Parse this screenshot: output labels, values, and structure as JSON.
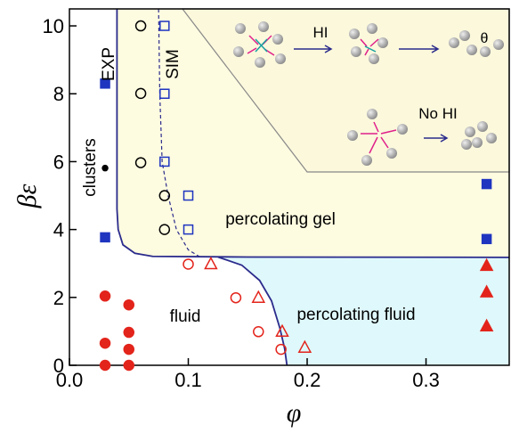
{
  "chart_data": {
    "type": "scatter",
    "xlabel": "φ",
    "ylabel": "βε",
    "xlim": [
      0,
      0.37
    ],
    "ylim": [
      0,
      10.5
    ],
    "xticks": [
      {
        "value": 0,
        "label": "0.0"
      },
      0.1,
      0.2,
      0.3
    ],
    "yticks": [
      0,
      2,
      4,
      6,
      8,
      10
    ],
    "series": [
      {
        "marker": "circle",
        "filled": true,
        "color": "#e3241b",
        "x": [
          0.03,
          0.03,
          0.03,
          0.05,
          0.05,
          0.05,
          0.05
        ],
        "y": [
          2.04,
          0.65,
          0,
          1.78,
          0.97,
          0.47,
          0
        ]
      },
      {
        "marker": "circle",
        "filled": false,
        "color": "#e3241b",
        "x": [
          0.1,
          0.14,
          0.159,
          0.178
        ],
        "y": [
          2.98,
          1.99,
          0.99,
          0.47
        ]
      },
      {
        "marker": "triangle",
        "filled": false,
        "color": "#e3241b",
        "x": [
          0.119,
          0.159,
          0.179,
          0.198
        ],
        "y": [
          2.98,
          1.99,
          0.99,
          0.52
        ]
      },
      {
        "marker": "triangle",
        "filled": true,
        "color": "#e3241b",
        "x": [
          0.351,
          0.351,
          0.351
        ],
        "y": [
          2.93,
          2.15,
          1.15
        ]
      },
      {
        "marker": "circle",
        "filled": false,
        "color": "#000000",
        "x": [
          0.06,
          0.06,
          0.06,
          0.08,
          0.08
        ],
        "y": [
          10,
          8.01,
          5.97,
          5,
          4
        ]
      },
      {
        "marker": "square",
        "filled": false,
        "color": "#1f35c0",
        "x": [
          0.08,
          0.08,
          0.08,
          0.1,
          0.1
        ],
        "y": [
          10,
          8,
          6,
          5,
          4
        ]
      },
      {
        "marker": "square",
        "filled": true,
        "color": "#1f35c0",
        "x": [
          0.03,
          0.03,
          0.351,
          0.351
        ],
        "y": [
          8.3,
          3.77,
          5.34,
          3.72
        ]
      },
      {
        "marker": "dot",
        "filled": true,
        "color": "#000000",
        "x": [
          0.03
        ],
        "y": [
          5.81
        ]
      }
    ],
    "lines": [
      {
        "color": "#2b2b8c",
        "dash": false,
        "x": [
          0.04,
          0.04,
          0.041,
          0.045,
          0.055,
          0.07,
          0.15,
          0.37
        ],
        "y": [
          10.5,
          4.6,
          4.0,
          3.55,
          3.3,
          3.21,
          3.19,
          3.18
        ]
      },
      {
        "color": "#2b2b8c",
        "dash": false,
        "x": [
          0.125,
          0.145,
          0.16,
          0.17,
          0.177,
          0.181,
          0.183
        ],
        "y": [
          3.19,
          2.95,
          2.5,
          1.9,
          1.1,
          0.5,
          0
        ]
      },
      {
        "color": "#2b2b8c",
        "dash": true,
        "x": [
          0.075,
          0.076,
          0.078,
          0.083,
          0.09,
          0.1,
          0.11
        ],
        "y": [
          10.5,
          8,
          6,
          5,
          4,
          3.4,
          3.19
        ]
      }
    ],
    "annotations": [
      "EXP",
      "SIM",
      "clusters",
      "percolating gel",
      "fluid",
      "percolating fluid",
      "HI",
      "No HI",
      "θ"
    ]
  }
}
